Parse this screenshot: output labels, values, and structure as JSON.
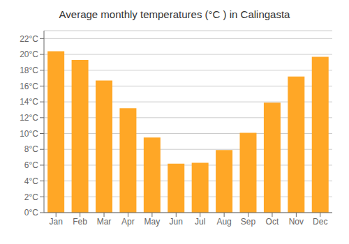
{
  "chart_data": {
    "type": "bar",
    "title": "Average monthly temperatures (°C ) in Calingasta",
    "categories": [
      "Jan",
      "Feb",
      "Mar",
      "Apr",
      "May",
      "Jun",
      "Jul",
      "Aug",
      "Sep",
      "Oct",
      "Nov",
      "Dec"
    ],
    "values": [
      20.4,
      19.3,
      16.7,
      13.2,
      9.5,
      6.2,
      6.3,
      7.9,
      10.1,
      13.9,
      17.2,
      19.7
    ],
    "color": "#FFA726",
    "ylim": [
      0,
      23
    ],
    "yticks": [
      {
        "value": 0,
        "label": "0°C"
      },
      {
        "value": 2,
        "label": "2°C"
      },
      {
        "value": 4,
        "label": "4°C"
      },
      {
        "value": 6,
        "label": "6°C"
      },
      {
        "value": 8,
        "label": "8°C"
      },
      {
        "value": 10,
        "label": "10°C"
      },
      {
        "value": 12,
        "label": "12°C"
      },
      {
        "value": 14,
        "label": "14°C"
      },
      {
        "value": 16,
        "label": "16°C"
      },
      {
        "value": 18,
        "label": "18°C"
      },
      {
        "value": 20,
        "label": "20°C"
      },
      {
        "value": 22,
        "label": "22°C"
      }
    ],
    "grid": true
  }
}
